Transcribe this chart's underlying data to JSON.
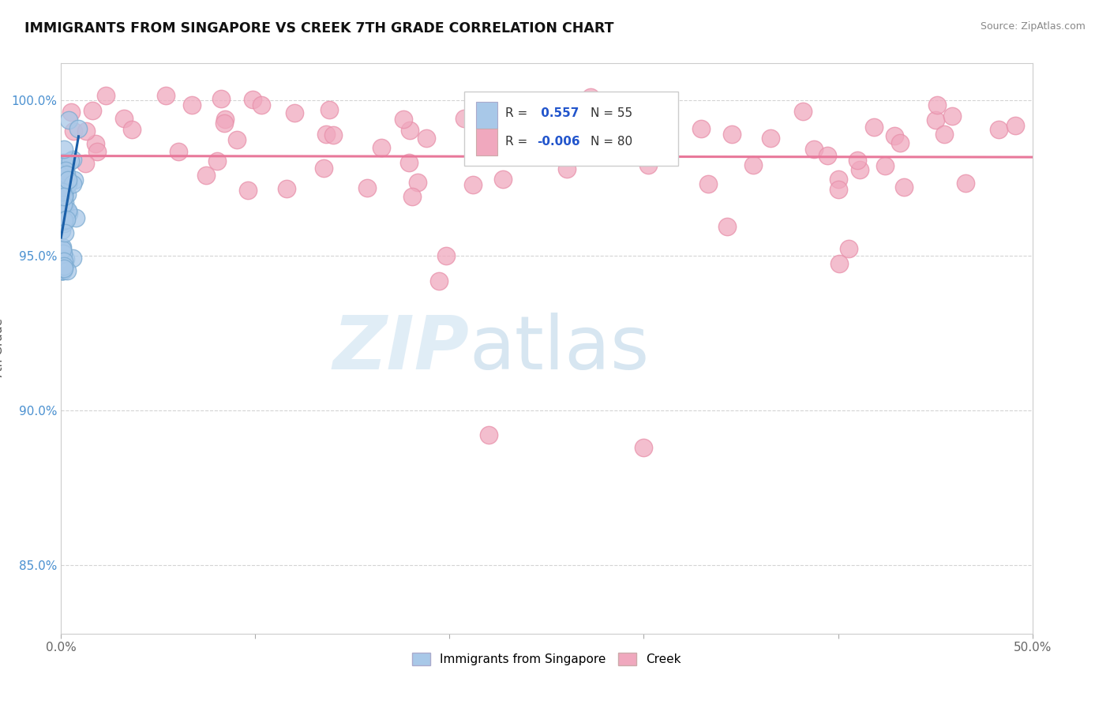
{
  "title": "IMMIGRANTS FROM SINGAPORE VS CREEK 7TH GRADE CORRELATION CHART",
  "source": "Source: ZipAtlas.com",
  "ylabel": "7th Grade",
  "ytick_vals": [
    0.85,
    0.9,
    0.95,
    1.0
  ],
  "xlim": [
    0.0,
    0.5
  ],
  "ylim": [
    0.828,
    1.012
  ],
  "blue_line_color": "#1a5fa8",
  "pink_line_color": "#e8789a",
  "scatter_blue_color": "#a8c8e8",
  "scatter_blue_edge": "#7aaad0",
  "scatter_pink_color": "#f0a8be",
  "scatter_pink_edge": "#e890aa",
  "watermark_zip": "ZIP",
  "watermark_atlas": "atlas",
  "background_color": "#ffffff",
  "grid_color": "#d0d0d0",
  "ytick_color": "#4a90d0",
  "xtick_color": "#666666",
  "r_blue": "0.557",
  "n_blue": "55",
  "r_pink": "-0.006",
  "n_pink": "80",
  "legend_label_blue": "Immigrants from Singapore",
  "legend_label_pink": "Creek"
}
